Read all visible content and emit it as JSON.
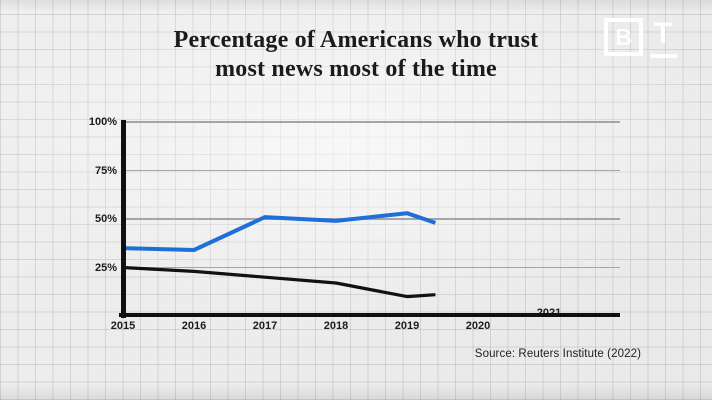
{
  "page": {
    "title_line1": "Percentage of Americans who trust",
    "title_line2": "most news most of the time"
  },
  "logo": {
    "b": "B",
    "t": "T"
  },
  "footer": {
    "source": "Source: Reuters Institute (2022)"
  },
  "chart_data": {
    "type": "line",
    "title": "Percentage of Americans who trust most news most of the time",
    "xlabel": "",
    "ylabel": "",
    "x_tick_labels": [
      "2015",
      "2016",
      "2017",
      "2018",
      "2019",
      "2020",
      "2021"
    ],
    "x_ticks": [
      2015,
      2016,
      2017,
      2018,
      2019,
      2020,
      2021
    ],
    "y_tick_labels": [
      "100%",
      "75%",
      "50%",
      "25%"
    ],
    "y_ticks": [
      100,
      75,
      50,
      25
    ],
    "ylim": [
      0,
      100
    ],
    "xlim": [
      2015,
      2022
    ],
    "grid": "horizontal-only",
    "legend": "none",
    "series": [
      {
        "name": "blue-line",
        "color": "#1e6fd8",
        "x": [
          2015,
          2016,
          2017,
          2018,
          2019,
          2019.4
        ],
        "values": [
          35,
          34,
          51,
          49,
          53,
          48
        ]
      },
      {
        "name": "black-line",
        "color": "#111111",
        "x": [
          2015,
          2016,
          2017,
          2018,
          2019,
          2019.4
        ],
        "values": [
          25,
          23,
          20,
          17,
          10,
          11
        ]
      }
    ],
    "source": "Source: Reuters Institute (2022)"
  }
}
